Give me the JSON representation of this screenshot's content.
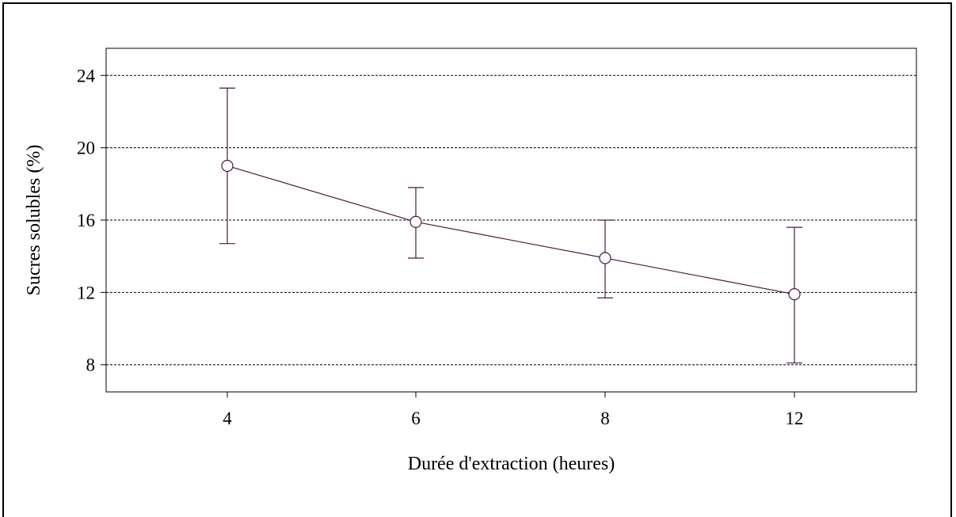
{
  "chart_data": {
    "type": "line",
    "categories": [
      "4",
      "6",
      "8",
      "12"
    ],
    "series": [
      {
        "values": [
          19.0,
          15.9,
          13.9,
          11.9
        ],
        "error_low": [
          14.7,
          13.9,
          11.7,
          8.1
        ],
        "error_high": [
          23.3,
          17.8,
          16.0,
          15.6
        ]
      }
    ],
    "xlabel": "Durée d'extraction (heures)",
    "ylabel": "Sucres solubles (%)",
    "ylim": [
      6.5,
      25.5
    ],
    "yticks": [
      8,
      12,
      16,
      20,
      24
    ],
    "grid": "horizontal-dashed",
    "legend": "none",
    "marker": "open-circle",
    "color": "#4a1942"
  }
}
